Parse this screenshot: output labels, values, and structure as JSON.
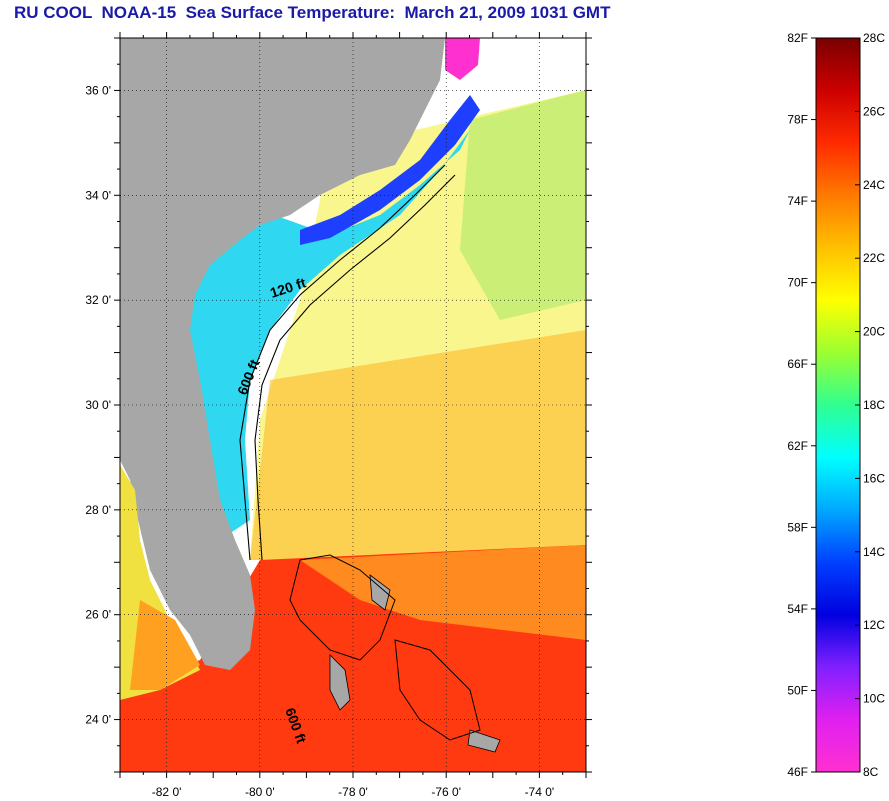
{
  "title": "RU COOL  NOAA-15  Sea Surface Temperature:  March 21, 2009 1031 GMT",
  "map": {
    "lon_range": [
      -83,
      -73
    ],
    "lat_range": [
      23,
      37
    ],
    "lon_ticks": [
      {
        "value": -82,
        "label": "-82 0'"
      },
      {
        "value": -80,
        "label": "-80 0'"
      },
      {
        "value": -78,
        "label": "-78 0'"
      },
      {
        "value": -76,
        "label": "-76 0'"
      },
      {
        "value": -74,
        "label": "-74 0'"
      }
    ],
    "lat_ticks": [
      {
        "value": 36,
        "label": "36 0'"
      },
      {
        "value": 34,
        "label": "34 0'"
      },
      {
        "value": 32,
        "label": "32 0'"
      },
      {
        "value": 30,
        "label": "30 0'"
      },
      {
        "value": 28,
        "label": "28 0'"
      },
      {
        "value": 26,
        "label": "26 0'"
      },
      {
        "value": 24,
        "label": "24 0'"
      }
    ],
    "contour_labels": [
      {
        "text": "120 ft"
      },
      {
        "text": "600 ft"
      },
      {
        "text": "600 ft"
      }
    ],
    "colors": {
      "land": "#a7a7a7",
      "cloud": "#ffffff",
      "coast_cold": "#1f3fff",
      "shelf": "#2fd8f0",
      "gulf_stream": "#ff3a10",
      "warm_offshore": "#ffb020",
      "mid_offshore": "#f3ee30"
    }
  },
  "colorbar": {
    "fahrenheit": [
      "82F",
      "78F",
      "74F",
      "70F",
      "66F",
      "62F",
      "58F",
      "54F",
      "50F",
      "46F"
    ],
    "celsius": [
      "28C",
      "26C",
      "24C",
      "22C",
      "20C",
      "18C",
      "16C",
      "14C",
      "12C",
      "10C",
      "8C"
    ],
    "gradient": [
      "#7a0000",
      "#cc0000",
      "#ff2a00",
      "#ff7a00",
      "#ffc000",
      "#ffff00",
      "#9cff30",
      "#30ff90",
      "#00ffff",
      "#00a8ff",
      "#0040ff",
      "#0000e0",
      "#8020ff",
      "#e020f0",
      "#ff30d0"
    ]
  }
}
